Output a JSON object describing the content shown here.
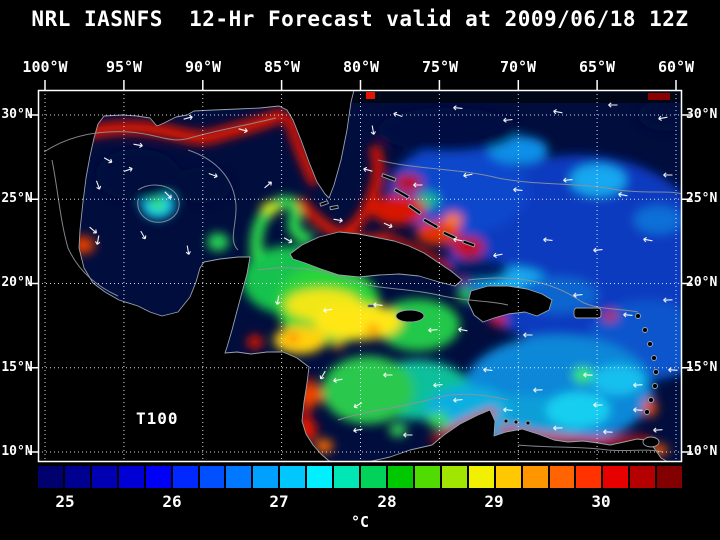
{
  "title": "NRL IASNFS  12-Hr Forecast valid at 2009/06/18 12Z",
  "map": {
    "depth_label": "T100",
    "lon_labels": [
      "100°W",
      "95°W",
      "90°W",
      "85°W",
      "80°W",
      "75°W",
      "70°W",
      "65°W",
      "60°W"
    ],
    "lat_labels": [
      "30°N",
      "25°N",
      "20°N",
      "15°N",
      "10°N"
    ]
  },
  "colorbar": {
    "unit_label": "°C",
    "tick_labels": [
      "25",
      "26",
      "27",
      "28",
      "29",
      "30"
    ],
    "segment_colors": [
      "#00006e",
      "#000090",
      "#0000b2",
      "#0000d4",
      "#0000f6",
      "#0028ff",
      "#0050ff",
      "#0078ff",
      "#00a0ff",
      "#00c8ff",
      "#00f0ff",
      "#00e6b4",
      "#00d25a",
      "#00c800",
      "#50dc00",
      "#a0e600",
      "#f0f000",
      "#ffc800",
      "#ff9600",
      "#ff6400",
      "#ff3200",
      "#e60000",
      "#b40000",
      "#820000"
    ]
  },
  "chart_data": {
    "type": "heatmap",
    "title": "NRL IASNFS  12-Hr Forecast valid at 2009/06/18 12Z",
    "field_label": "T100",
    "unit": "°C",
    "colorbar_ticks": [
      25,
      26,
      27,
      28,
      29,
      30
    ],
    "x_ticks": [
      "100°W",
      "95°W",
      "90°W",
      "85°W",
      "80°W",
      "75°W",
      "70°W",
      "65°W",
      "60°W"
    ],
    "y_ticks": [
      "30°N",
      "25°N",
      "20°N",
      "15°N",
      "10°N"
    ],
    "legend_position": "bottom"
  }
}
